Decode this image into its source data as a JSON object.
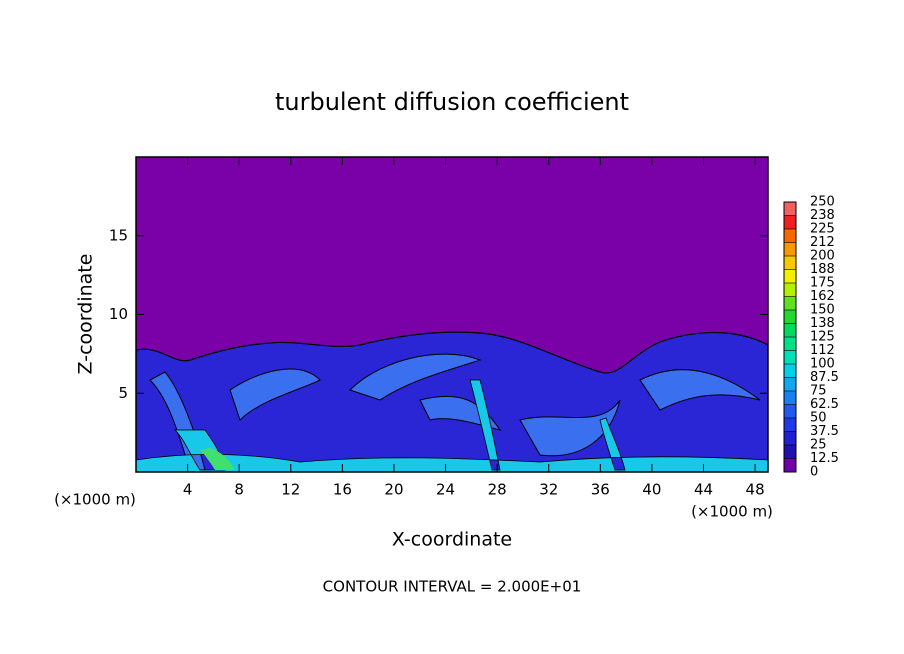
{
  "chart_data": {
    "type": "contour",
    "title": "turbulent diffusion coefficient",
    "x_label": "X-coordinate",
    "y_label": "Z-coordinate",
    "x_unit": "(×1000 m)",
    "x_unit_right": "(×1000 m)",
    "footer": "CONTOUR INTERVAL = 2.000E+01",
    "xlim": [
      0,
      49
    ],
    "xticks": [
      4,
      8,
      12,
      16,
      20,
      24,
      28,
      32,
      36,
      40,
      44,
      48
    ],
    "ylim": [
      0,
      20
    ],
    "yticks": [
      5,
      10,
      15
    ],
    "colorbar": {
      "lim": [
        0,
        250
      ],
      "ticks": [
        0,
        12.5,
        25,
        37.5,
        50,
        62.5,
        75,
        87.5,
        100,
        {
          "value": 112.5,
          "label": "112"
        },
        125,
        {
          "value": 137.5,
          "label": "138"
        },
        150,
        {
          "value": 162.5,
          "label": "162"
        },
        175,
        {
          "value": 187.5,
          "label": "188"
        },
        200,
        {
          "value": 212.5,
          "label": "212"
        },
        225,
        {
          "value": 237.5,
          "label": "238"
        },
        250
      ],
      "colors": [
        "#7000a8",
        "#2010b0",
        "#2020d0",
        "#2038e8",
        "#2058f0",
        "#1880f0",
        "#10a8f0",
        "#00d0e8",
        "#00e0b8",
        "#00e088",
        "#00d860",
        "#20d830",
        "#60e020",
        "#b0f000",
        "#f0f000",
        "#f8c800",
        "#f89800",
        "#f86800",
        "#f02020",
        "#f06060"
      ]
    }
  }
}
